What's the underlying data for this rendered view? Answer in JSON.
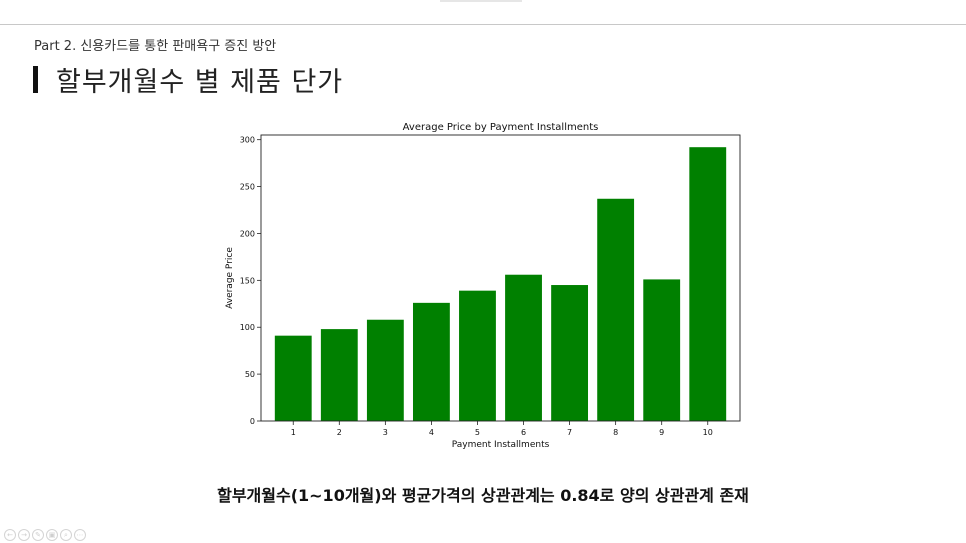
{
  "slide": {
    "subtitle": "Part 2. 신용카드를 통한 판매욕구 증진 방안",
    "title": "할부개월수 별 제품 단가",
    "caption": "할부개월수(1~10개월)와 평균가격의 상관관계는 0.84로 양의 상관관계 존재"
  },
  "controls": {
    "icons": [
      "arrow-left-icon",
      "arrow-right-icon",
      "pen-icon",
      "slides-icon",
      "zoom-icon",
      "more-icon"
    ],
    "glyphs": [
      "←",
      "→",
      "✎",
      "▣",
      "⌕",
      "⋯"
    ]
  },
  "chart_data": {
    "type": "bar",
    "title": "Average Price by Payment Installments",
    "xlabel": "Payment Installments",
    "ylabel": "Average Price",
    "categories": [
      "1",
      "2",
      "3",
      "4",
      "5",
      "6",
      "7",
      "8",
      "9",
      "10"
    ],
    "values": [
      91,
      98,
      108,
      126,
      139,
      156,
      145,
      237,
      151,
      292
    ],
    "ylim": [
      0,
      305
    ],
    "yticks": [
      0,
      50,
      100,
      150,
      200,
      250,
      300
    ],
    "color": "#008000",
    "grid": false,
    "legend": "none"
  }
}
